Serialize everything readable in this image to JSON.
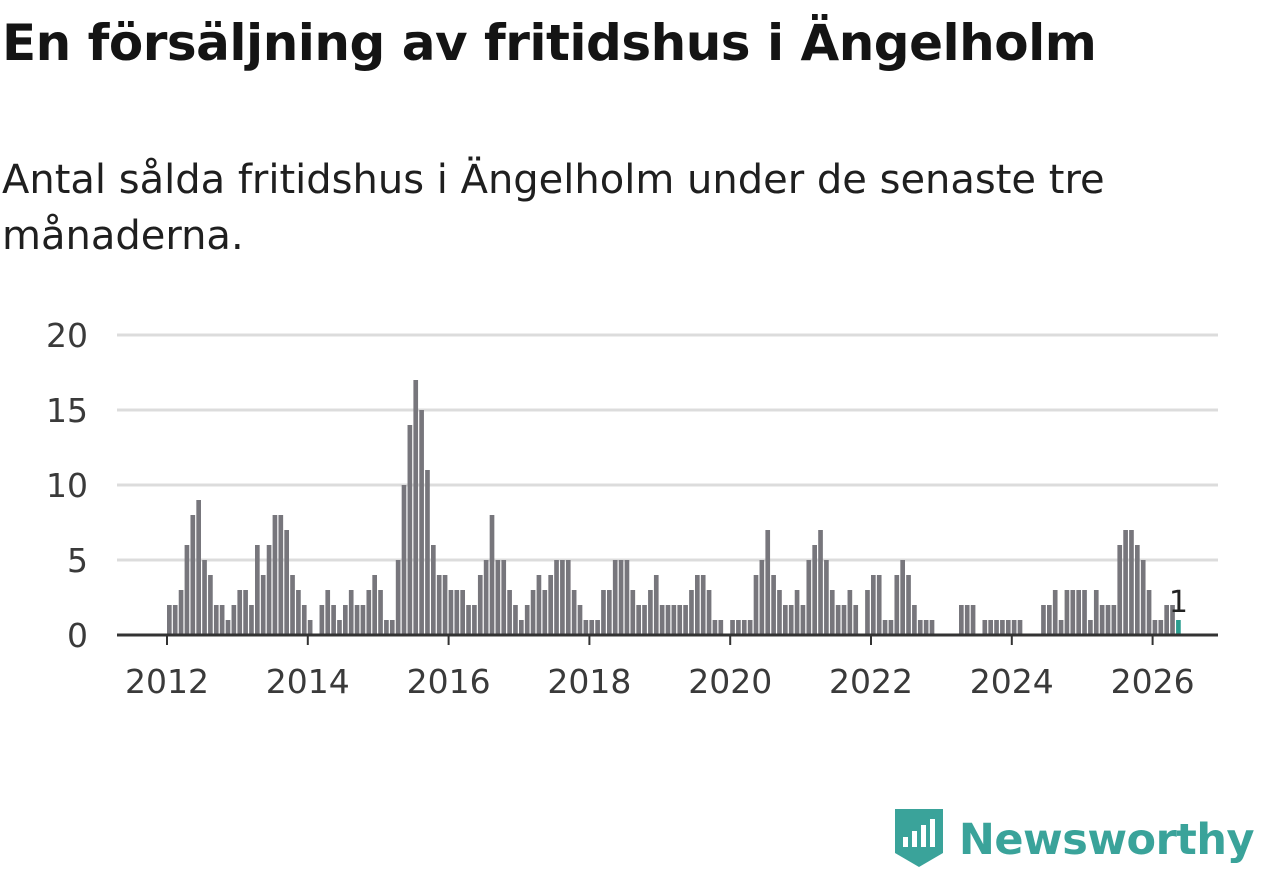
{
  "title": "En försäljning av fritidshus i Ängelholm",
  "subtitle": "Antal sålda fritidshus i Ängelholm under de senaste tre månaderna.",
  "brand": {
    "name": "Newsworthy",
    "icon": "newsworthy-logo-icon"
  },
  "colors": {
    "bar": "#77767c",
    "highlight": "#2a9d8f",
    "grid": "#dcdcdc",
    "axis": "#333333",
    "brand": "#3aa39a"
  },
  "chart_data": {
    "type": "bar",
    "title": "En försäljning av fritidshus i Ängelholm",
    "subtitle": "Antal sålda fritidshus i Ängelholm under de senaste tre månaderna.",
    "xlabel": "",
    "ylabel": "",
    "ylim": [
      0,
      20
    ],
    "yticks": [
      0,
      5,
      10,
      15,
      20
    ],
    "xticks": [
      2012,
      2014,
      2016,
      2018,
      2020,
      2022,
      2024,
      2026
    ],
    "grid": true,
    "start": "2012-01",
    "frequency": "monthly",
    "last_value_label": "1",
    "values": [
      2,
      2,
      3,
      6,
      8,
      9,
      5,
      4,
      2,
      2,
      1,
      2,
      3,
      3,
      2,
      6,
      4,
      6,
      8,
      8,
      7,
      4,
      3,
      2,
      1,
      0,
      2,
      3,
      2,
      1,
      2,
      3,
      2,
      2,
      3,
      4,
      3,
      1,
      1,
      5,
      10,
      14,
      17,
      15,
      11,
      6,
      4,
      4,
      3,
      3,
      3,
      2,
      2,
      4,
      5,
      8,
      5,
      5,
      3,
      2,
      1,
      2,
      3,
      4,
      3,
      4,
      5,
      5,
      5,
      3,
      2,
      1,
      1,
      1,
      3,
      3,
      5,
      5,
      5,
      3,
      2,
      2,
      3,
      4,
      2,
      2,
      2,
      2,
      2,
      3,
      4,
      4,
      3,
      1,
      1,
      0,
      1,
      1,
      1,
      1,
      4,
      5,
      7,
      4,
      3,
      2,
      2,
      3,
      2,
      5,
      6,
      7,
      5,
      3,
      2,
      2,
      3,
      2,
      0,
      3,
      4,
      4,
      1,
      1,
      4,
      5,
      4,
      2,
      1,
      1,
      1,
      0,
      0,
      0,
      0,
      2,
      2,
      2,
      0,
      1,
      1,
      1,
      1,
      1,
      1,
      1,
      0,
      0,
      0,
      2,
      2,
      3,
      1,
      3,
      3,
      3,
      3,
      1,
      3,
      2,
      2,
      2,
      6,
      7,
      7,
      6,
      5,
      3,
      1,
      1,
      2,
      2,
      1
    ]
  }
}
